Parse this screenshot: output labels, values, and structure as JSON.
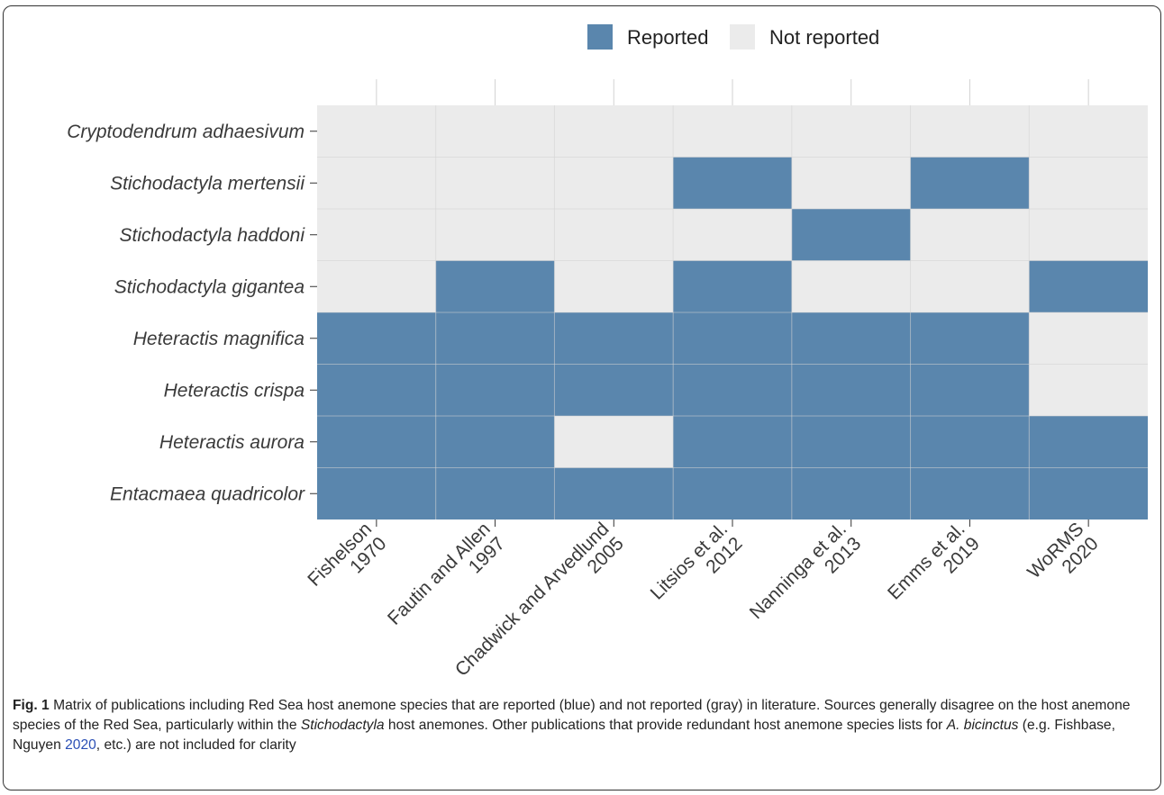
{
  "chart_data": {
    "type": "heatmap",
    "title": "",
    "xlabel": "",
    "ylabel": "",
    "x_categories": [
      [
        "Fishelson",
        "1970"
      ],
      [
        "Fautin and Allen",
        "1997"
      ],
      [
        "Chadwick and Arvedlund",
        "2005"
      ],
      [
        "Litsios et al.",
        "2012"
      ],
      [
        "Nanninga et al.",
        "2013"
      ],
      [
        "Emms et al.",
        "2019"
      ],
      [
        "WoRMS",
        "2020"
      ]
    ],
    "y_categories": [
      "Cryptodendrum adhaesivum",
      "Stichodactyla mertensii",
      "Stichodactyla haddoni",
      "Stichodactyla gigantea",
      "Heteractis magnifica",
      "Heteractis crispa",
      "Heteractis aurora",
      "Entacmaea quadricolor"
    ],
    "values": [
      [
        0,
        0,
        0,
        0,
        0,
        0,
        0
      ],
      [
        0,
        0,
        0,
        1,
        0,
        1,
        0
      ],
      [
        0,
        0,
        0,
        0,
        1,
        0,
        0
      ],
      [
        0,
        1,
        0,
        1,
        0,
        0,
        1
      ],
      [
        1,
        1,
        1,
        1,
        1,
        1,
        0
      ],
      [
        1,
        1,
        1,
        1,
        1,
        1,
        0
      ],
      [
        1,
        1,
        0,
        1,
        1,
        1,
        1
      ],
      [
        1,
        1,
        1,
        1,
        1,
        1,
        1
      ]
    ],
    "legend": {
      "position": "top",
      "entries": [
        {
          "label": "Reported",
          "value": 1,
          "color": "#5a86ad"
        },
        {
          "label": "Not reported",
          "value": 0,
          "color": "#ebebeb"
        }
      ]
    },
    "grid": true
  },
  "colors": {
    "reported": "#5a86ad",
    "not_reported": "#ebebeb",
    "grid": "#d2d2d2",
    "tick": "#333333",
    "text": "#3a3a3a"
  },
  "caption": {
    "label": "Fig. 1",
    "part1": "Matrix of publications including Red Sea host anemone species that are reported (blue) and not reported (gray) in literature. Sources generally disagree on the host anemone species of the Red Sea, particularly within the ",
    "genus": "Stichodactyla",
    "part2": " host anemones. Other publications that provide redundant host anemone species lists for ",
    "species": "A. bicinctus",
    "part3": " (e.g. Fishbase, Nguyen ",
    "ref": "2020",
    "part4": ", etc.) are not included for clarity"
  }
}
